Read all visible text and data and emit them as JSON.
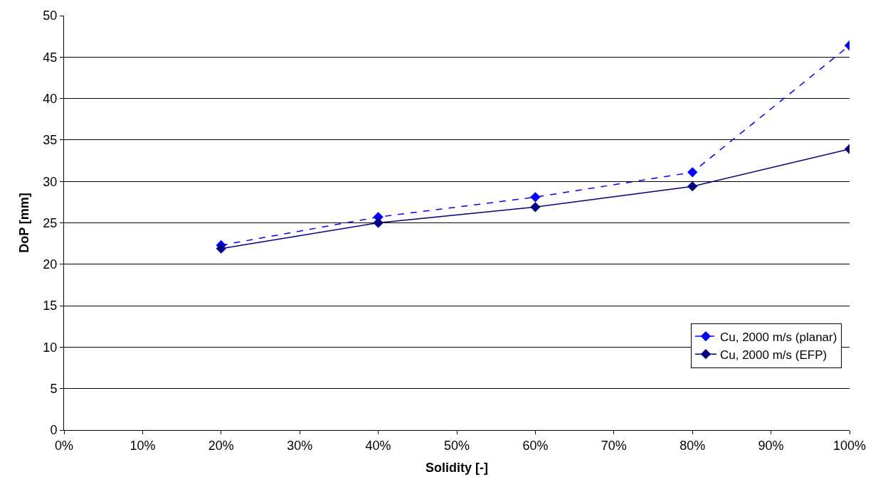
{
  "chart_data": {
    "type": "line",
    "xlabel": "Solidity [-]",
    "ylabel": "DoP [mm]",
    "x": [
      20,
      40,
      60,
      80,
      100
    ],
    "series": [
      {
        "name": "Cu, 2000 m/s (planar)",
        "color": "#0000ff",
        "values": [
          22.3,
          25.7,
          28.1,
          31.1,
          46.4
        ],
        "line_style": "dashed",
        "marker": "diamond"
      },
      {
        "name": "Cu, 2000 m/s (EFP)",
        "color": "#000080",
        "values": [
          21.9,
          25.0,
          26.9,
          29.4,
          33.9
        ],
        "line_style": "solid",
        "marker": "diamond"
      }
    ],
    "xlim": [
      0,
      100
    ],
    "xticks": [
      {
        "value": 0,
        "label": "0%"
      },
      {
        "value": 10,
        "label": "10%"
      },
      {
        "value": 20,
        "label": "20%"
      },
      {
        "value": 30,
        "label": "30%"
      },
      {
        "value": 40,
        "label": "40%"
      },
      {
        "value": 50,
        "label": "50%"
      },
      {
        "value": 60,
        "label": "60%"
      },
      {
        "value": 70,
        "label": "70%"
      },
      {
        "value": 80,
        "label": "80%"
      },
      {
        "value": 90,
        "label": "90%"
      },
      {
        "value": 100,
        "label": "100%"
      }
    ],
    "ylim": [
      0,
      50
    ],
    "yticks": [
      0,
      5,
      10,
      15,
      20,
      25,
      30,
      35,
      40,
      45,
      50
    ],
    "grid": "y",
    "legend": "bottom right"
  }
}
